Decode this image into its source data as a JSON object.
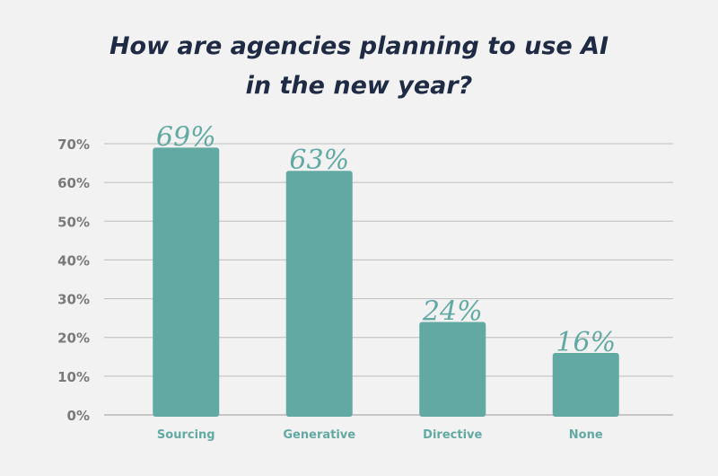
{
  "chart_data": {
    "type": "bar",
    "title": "How are agencies planning to use AI in the new year?",
    "categories": [
      "Sourcing",
      "Generative",
      "Directive",
      "None"
    ],
    "values": [
      69,
      63,
      24,
      16
    ],
    "data_labels": [
      "69%",
      "63%",
      "24%",
      "16%"
    ],
    "yticks": [
      "0%",
      "10%",
      "20%",
      "30%",
      "40%",
      "50%",
      "60%",
      "70%"
    ],
    "ylim": [
      0,
      70
    ],
    "grid": true,
    "xlabel": "",
    "ylabel": "",
    "colors": {
      "bar": "#63a9a3",
      "label": "#63a9a3",
      "category": "#63a9a3",
      "tick": "#7a7a7a",
      "grid": "#bdbdbd",
      "title": "#1f2a44",
      "background": "#f2f2f2"
    }
  }
}
